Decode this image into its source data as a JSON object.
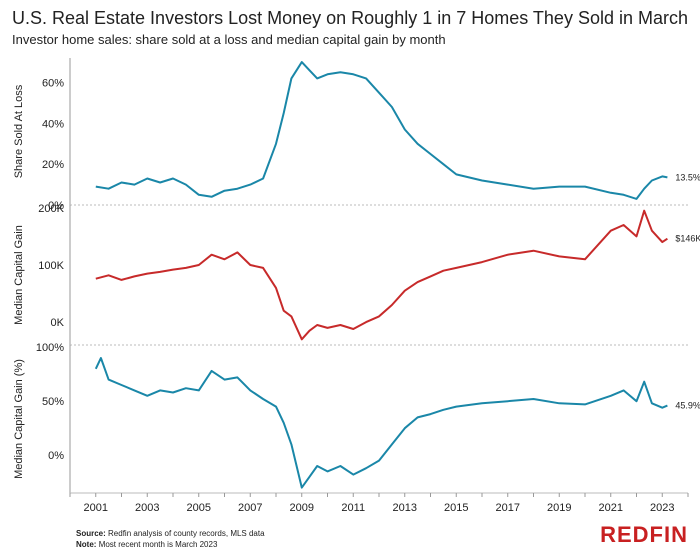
{
  "title": "U.S. Real Estate Investors Lost Money on Roughly 1 in 7 Homes They Sold in March",
  "subtitle": "Investor home sales: share sold at a loss and median capital gain by month",
  "footer": {
    "source_label": "Source:",
    "source_text": "Redfin analysis of county records, MLS data",
    "note_label": "Note:",
    "note_text": "Most recent month is March 2023"
  },
  "brand": "REDFIN",
  "colors": {
    "teal": "#1a87a8",
    "red": "#c72a2a",
    "axis": "#999999"
  },
  "chart_data": [
    {
      "type": "line",
      "ylabel": "Share Sold At Loss",
      "ylim": [
        0,
        72
      ],
      "yticks": [
        0,
        20,
        40,
        60
      ],
      "ytick_labels": [
        "0%",
        "20%",
        "40%",
        "60%"
      ],
      "end_label": "13.5%",
      "color": "#1a87a8",
      "series": [
        {
          "x": [
            2001.0,
            2001.5,
            2002.0,
            2002.5,
            2003.0,
            2003.5,
            2004.0,
            2004.5,
            2005.0,
            2005.5,
            2006.0,
            2006.5,
            2007.0,
            2007.5,
            2008.0,
            2008.3,
            2008.6,
            2009.0,
            2009.3,
            2009.6,
            2010.0,
            2010.5,
            2011.0,
            2011.5,
            2012.0,
            2012.5,
            2013.0,
            2013.5,
            2014.0,
            2014.5,
            2015.0,
            2016.0,
            2017.0,
            2018.0,
            2019.0,
            2020.0,
            2021.0,
            2021.5,
            2022.0,
            2022.3,
            2022.6,
            2023.0,
            2023.2
          ],
          "y": [
            9,
            8,
            11,
            10,
            13,
            11,
            13,
            10,
            5,
            4,
            7,
            8,
            10,
            13,
            30,
            45,
            62,
            70,
            66,
            62,
            64,
            65,
            64,
            62,
            55,
            48,
            37,
            30,
            25,
            20,
            15,
            12,
            10,
            8,
            9,
            9,
            6,
            5,
            3,
            8,
            12,
            14,
            13.5
          ]
        }
      ]
    },
    {
      "type": "line",
      "ylabel": "Median Capital Gain",
      "ylim": [
        -40,
        205
      ],
      "yticks": [
        0,
        100,
        200
      ],
      "ytick_labels": [
        "0K",
        "100K",
        "200K"
      ],
      "end_label": "$146K",
      "color": "#c72a2a",
      "series": [
        {
          "x": [
            2001.0,
            2001.5,
            2002.0,
            2002.5,
            2003.0,
            2003.5,
            2004.0,
            2004.5,
            2005.0,
            2005.5,
            2006.0,
            2006.5,
            2007.0,
            2007.5,
            2008.0,
            2008.3,
            2008.6,
            2009.0,
            2009.3,
            2009.6,
            2010.0,
            2010.5,
            2011.0,
            2011.5,
            2012.0,
            2012.5,
            2013.0,
            2013.5,
            2014.0,
            2014.5,
            2015.0,
            2016.0,
            2017.0,
            2018.0,
            2019.0,
            2020.0,
            2021.0,
            2021.5,
            2022.0,
            2022.3,
            2022.6,
            2023.0,
            2023.2
          ],
          "y": [
            76,
            82,
            74,
            80,
            85,
            88,
            92,
            95,
            100,
            118,
            110,
            122,
            100,
            95,
            60,
            20,
            10,
            -30,
            -15,
            -5,
            -10,
            -5,
            -12,
            0,
            10,
            30,
            55,
            70,
            80,
            90,
            95,
            105,
            118,
            125,
            115,
            110,
            160,
            170,
            150,
            195,
            160,
            140,
            146
          ]
        }
      ]
    },
    {
      "type": "line",
      "ylabel": "Median Capital Gain (%)",
      "ylim": [
        -35,
        102
      ],
      "yticks": [
        0,
        50,
        100
      ],
      "ytick_labels": [
        "0%",
        "50%",
        "100%"
      ],
      "end_label": "45.9%",
      "color": "#1a87a8",
      "series": [
        {
          "x": [
            2001.0,
            2001.2,
            2001.5,
            2002.0,
            2002.5,
            2003.0,
            2003.5,
            2004.0,
            2004.5,
            2005.0,
            2005.5,
            2006.0,
            2006.5,
            2007.0,
            2007.5,
            2008.0,
            2008.3,
            2008.6,
            2009.0,
            2009.3,
            2009.6,
            2010.0,
            2010.5,
            2011.0,
            2011.5,
            2012.0,
            2012.5,
            2013.0,
            2013.5,
            2014.0,
            2014.5,
            2015.0,
            2016.0,
            2017.0,
            2018.0,
            2019.0,
            2020.0,
            2021.0,
            2021.5,
            2022.0,
            2022.3,
            2022.6,
            2023.0,
            2023.2
          ],
          "y": [
            80,
            90,
            70,
            65,
            60,
            55,
            60,
            58,
            62,
            60,
            78,
            70,
            72,
            60,
            52,
            45,
            30,
            10,
            -30,
            -20,
            -10,
            -15,
            -10,
            -18,
            -12,
            -5,
            10,
            25,
            35,
            38,
            42,
            45,
            48,
            50,
            52,
            48,
            47,
            55,
            60,
            50,
            68,
            48,
            44,
            45.9
          ]
        }
      ]
    }
  ],
  "xaxis": {
    "xlim": [
      2000.0,
      2024.0
    ],
    "ticks": [
      "2001",
      "2003",
      "2005",
      "2007",
      "2009",
      "2011",
      "2013",
      "2015",
      "2017",
      "2019",
      "2021",
      "2023"
    ]
  }
}
